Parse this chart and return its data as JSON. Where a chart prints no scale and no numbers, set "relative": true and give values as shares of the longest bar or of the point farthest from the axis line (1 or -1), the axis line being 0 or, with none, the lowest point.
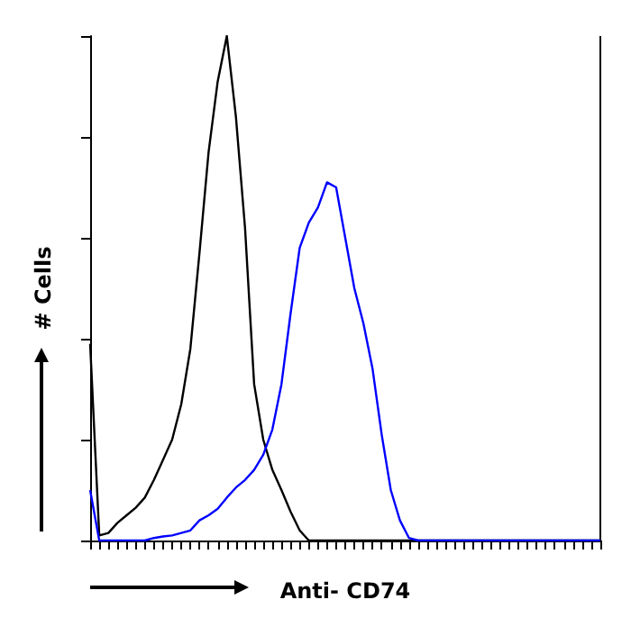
{
  "chart_data": {
    "type": "line",
    "relative": true,
    "xlabel": "Anti- CD74",
    "ylabel": "# Cells",
    "marker": "none",
    "categories": [
      null,
      null,
      null,
      null,
      null,
      null,
      null,
      null,
      null,
      null,
      null,
      null,
      null,
      null,
      null,
      null,
      null,
      null,
      null,
      null,
      null,
      null,
      null,
      null,
      null,
      null,
      null,
      null,
      null,
      null,
      null,
      null,
      null,
      null,
      null,
      null,
      null,
      null,
      null,
      null,
      null,
      null,
      null,
      null,
      null,
      null,
      null,
      null,
      null,
      null,
      null,
      null,
      null,
      null,
      null,
      null,
      null
    ],
    "series": [
      {
        "color": "#000000",
        "values": [
          0.39,
          0.01,
          0.015,
          0.035,
          0.05,
          0.065,
          0.085,
          0.12,
          0.16,
          0.2,
          0.27,
          0.38,
          0.57,
          0.77,
          0.91,
          1.0,
          0.84,
          0.62,
          0.31,
          0.2,
          0.14,
          0.1,
          0.057,
          0.02,
          0,
          0,
          0,
          0,
          0,
          0,
          0,
          0,
          0,
          0,
          0,
          0,
          0,
          0,
          0,
          0,
          0,
          0,
          0,
          0,
          0,
          0,
          0,
          0,
          0,
          0,
          0,
          0,
          0,
          0,
          0,
          0,
          0
        ]
      },
      {
        "color": "#0000ff",
        "values": [
          0.1,
          0,
          0,
          0,
          0,
          0,
          0,
          0.005,
          0.008,
          0.01,
          0.015,
          0.02,
          0.04,
          0.05,
          0.063,
          0.085,
          0.105,
          0.12,
          0.14,
          0.17,
          0.22,
          0.31,
          0.45,
          0.58,
          0.63,
          0.66,
          0.71,
          0.7,
          0.6,
          0.5,
          0.43,
          0.34,
          0.21,
          0.1,
          0.04,
          0.005,
          0,
          0,
          0,
          0,
          0,
          0,
          0,
          0,
          0,
          0,
          0,
          0,
          0,
          0,
          0,
          0,
          0,
          0,
          0,
          0,
          0
        ]
      }
    ]
  }
}
